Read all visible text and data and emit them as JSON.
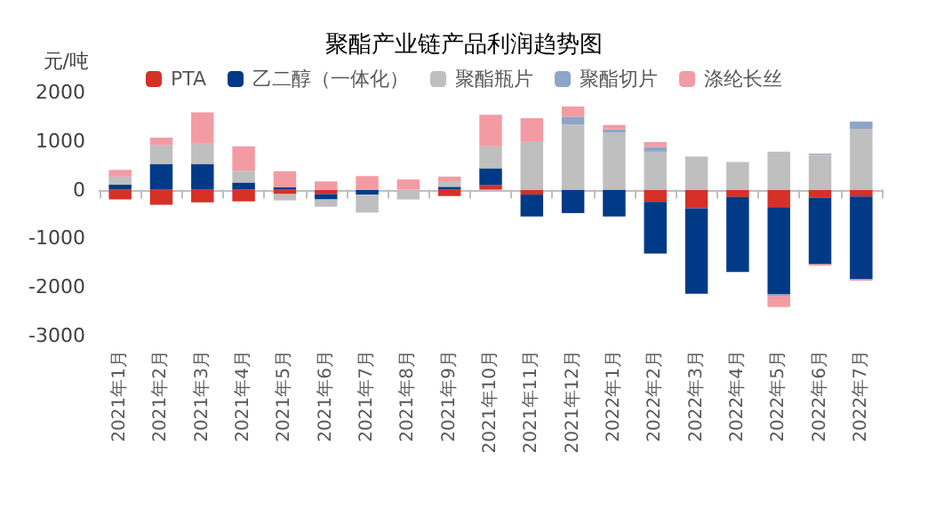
{
  "chart_data": {
    "type": "bar",
    "title": "聚酯产业链产品利润趋势图",
    "ylabel": "元/吨",
    "stacked": true,
    "legend": "top",
    "categories": [
      "2021年1月",
      "2021年2月",
      "2021年3月",
      "2021年4月",
      "2021年5月",
      "2021年6月",
      "2021年7月",
      "2021年8月",
      "2021年9月",
      "2021年10月",
      "2021年11月",
      "2021年12月",
      "2022年1月",
      "2022年2月",
      "2022年3月",
      "2022年4月",
      "2022年5月",
      "2022年6月",
      "2022年7月"
    ],
    "ylim": [
      -3000,
      2000
    ],
    "yticks": [
      -3000,
      -2000,
      -1000,
      0,
      1000,
      2000
    ],
    "series": [
      {
        "name": "PTA",
        "color": "#d63027",
        "values": [
          -200,
          -310,
          -260,
          -240,
          -90,
          -90,
          null,
          null,
          -130,
          100,
          -100,
          null,
          null,
          -250,
          -380,
          -150,
          -360,
          -170,
          -140
        ]
      },
      {
        "name": "乙二醇（一体化）",
        "color": "#003a86",
        "values": [
          100,
          530,
          530,
          150,
          50,
          -110,
          -100,
          null,
          60,
          340,
          -450,
          -480,
          -550,
          -1060,
          -1760,
          -1540,
          -1790,
          -1360,
          -1700
        ]
      },
      {
        "name": "聚酯瓶片",
        "color": "#bfbfbf",
        "values": [
          170,
          390,
          430,
          240,
          -130,
          -150,
          -370,
          -200,
          100,
          450,
          980,
          1340,
          1170,
          780,
          680,
          570,
          780,
          720,
          1250
        ]
      },
      {
        "name": "聚酯切片",
        "color": "#8ea5c8",
        "values": [
          null,
          null,
          null,
          null,
          null,
          null,
          null,
          null,
          null,
          null,
          null,
          160,
          70,
          100,
          null,
          null,
          -30,
          20,
          150
        ]
      },
      {
        "name": "涤纶长丝",
        "color": "#f39ba3",
        "values": [
          140,
          150,
          630,
          500,
          330,
          170,
          280,
          210,
          110,
          650,
          490,
          210,
          90,
          100,
          null,
          null,
          -230,
          -30,
          -30
        ]
      }
    ]
  }
}
